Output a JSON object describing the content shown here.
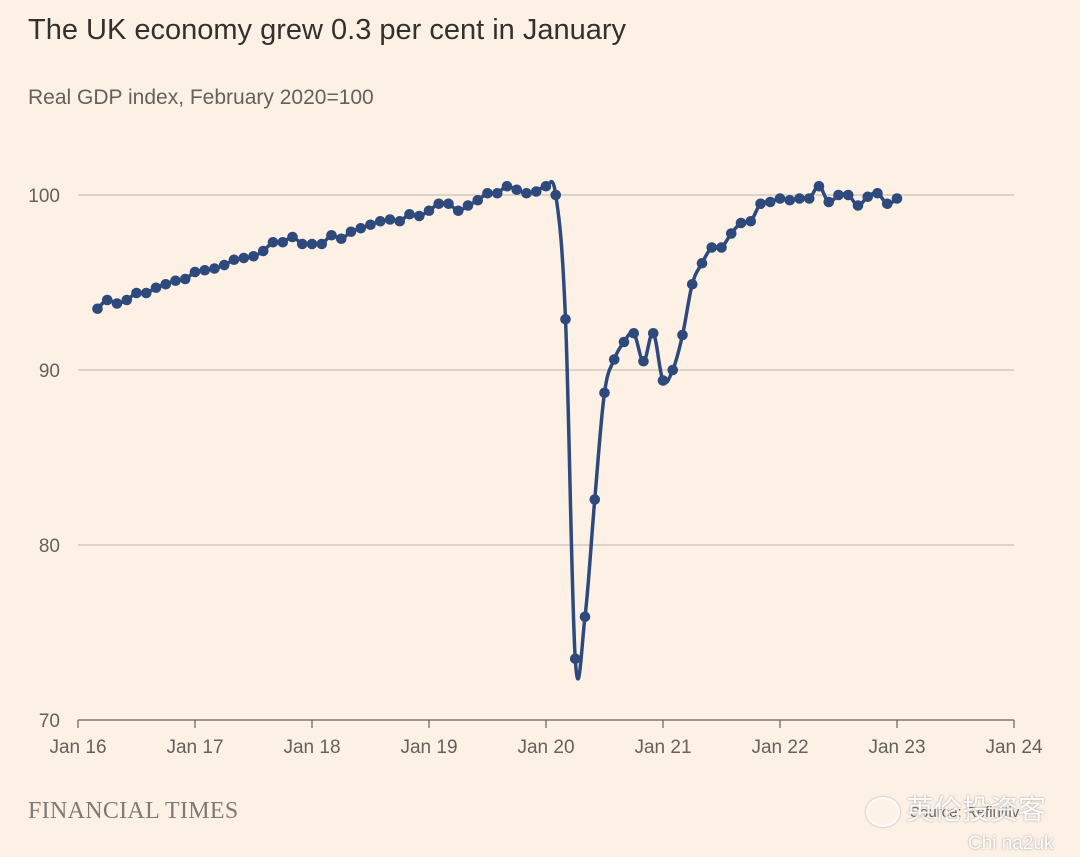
{
  "title": "The UK economy grew 0.3 per cent in January",
  "subtitle": "Real GDP index, February 2020=100",
  "footer": {
    "brand": "FINANCIAL TIMES",
    "source": "Source: Refinitiv"
  },
  "watermark": {
    "line1": "英伦投资客",
    "line2": "Chi na2uk"
  },
  "colors": {
    "line": "#2e4a7d",
    "grid": "#ccc1b7",
    "background": "#fdf1e6"
  },
  "chart_data": {
    "type": "line",
    "ylim": [
      70,
      102
    ],
    "yticks": [
      70,
      80,
      90,
      100
    ],
    "xticks": [
      {
        "label": "Jan 16",
        "year": 2016
      },
      {
        "label": "Jan 17",
        "year": 2017
      },
      {
        "label": "Jan 18",
        "year": 2018
      },
      {
        "label": "Jan 19",
        "year": 2019
      },
      {
        "label": "Jan 20",
        "year": 2020
      },
      {
        "label": "Jan 21",
        "year": 2021
      },
      {
        "label": "Jan 22",
        "year": 2022
      },
      {
        "label": "Jan 23",
        "year": 2023
      },
      {
        "label": "Jan 24",
        "year": 2024
      }
    ],
    "grid": true,
    "start": "2016-03",
    "values": [
      93.5,
      94.0,
      93.8,
      94.0,
      94.4,
      94.4,
      94.7,
      94.9,
      95.1,
      95.2,
      95.6,
      95.7,
      95.8,
      96.0,
      96.3,
      96.4,
      96.5,
      96.8,
      97.3,
      97.3,
      97.6,
      97.2,
      97.2,
      97.2,
      97.7,
      97.5,
      97.9,
      98.1,
      98.3,
      98.5,
      98.6,
      98.5,
      98.9,
      98.8,
      99.1,
      99.5,
      99.5,
      99.1,
      99.4,
      99.7,
      100.1,
      100.1,
      100.5,
      100.3,
      100.1,
      100.2,
      100.5,
      100.0,
      92.9,
      73.5,
      75.9,
      82.6,
      88.7,
      90.6,
      91.6,
      92.1,
      90.5,
      92.1,
      89.4,
      90.0,
      92.0,
      94.9,
      96.1,
      97.0,
      97.0,
      97.8,
      98.4,
      98.5,
      99.5,
      99.6,
      99.8,
      99.7,
      99.8,
      99.8,
      100.5,
      99.6,
      100.0,
      100.0,
      99.4,
      99.9,
      100.1,
      99.5,
      99.8
    ]
  }
}
